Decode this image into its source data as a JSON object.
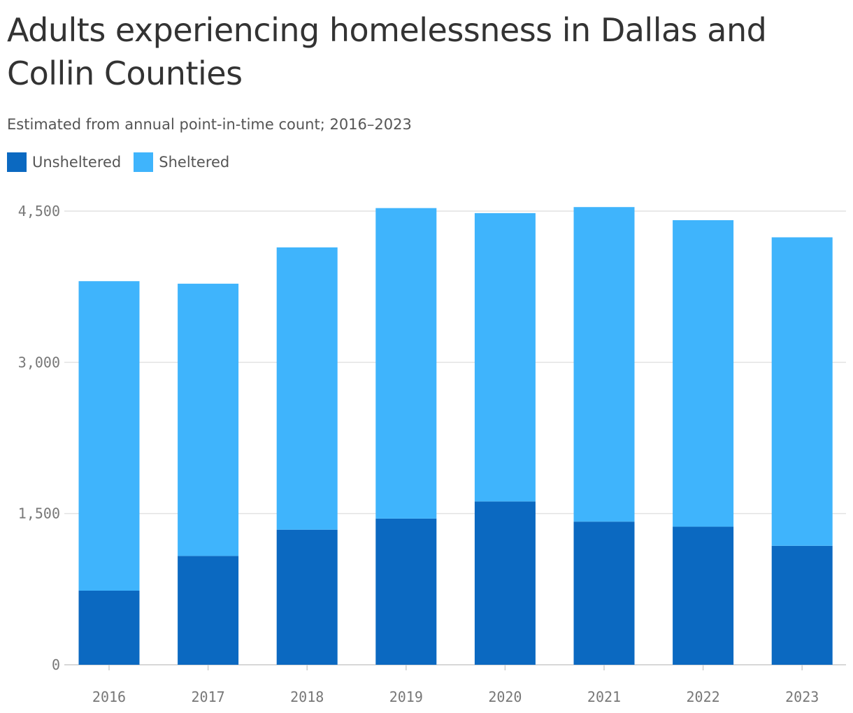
{
  "header": {
    "title": "Adults experiencing homelessness in Dallas and Collin Counties",
    "subtitle": "Estimated from annual point-in-time count; 2016–2023"
  },
  "legend": {
    "items": [
      {
        "label": "Unsheltered",
        "color": "#0b69c1"
      },
      {
        "label": "Sheltered",
        "color": "#3fb4fc"
      }
    ]
  },
  "colors": {
    "unsheltered": "#0b69c1",
    "sheltered": "#3fb4fc",
    "grid": "#e2e2e2",
    "axis": "#cccccc"
  },
  "chart_data": {
    "type": "bar",
    "stacked": true,
    "categories": [
      "2016",
      "2017",
      "2018",
      "2019",
      "2020",
      "2021",
      "2022",
      "2023"
    ],
    "series": [
      {
        "name": "Unsheltered",
        "values": [
          735,
          1080,
          1340,
          1450,
          1620,
          1420,
          1370,
          1180
        ]
      },
      {
        "name": "Sheltered",
        "values": [
          3070,
          2700,
          2800,
          3080,
          2860,
          3120,
          3040,
          3060
        ]
      }
    ],
    "yticks": [
      {
        "value": 0,
        "label": "0"
      },
      {
        "value": 1500,
        "label": "1,500"
      },
      {
        "value": 3000,
        "label": "3,000"
      },
      {
        "value": 4500,
        "label": "4,500"
      }
    ],
    "ylim": [
      0,
      4500
    ],
    "grid": true,
    "legend_position": "top-left"
  }
}
